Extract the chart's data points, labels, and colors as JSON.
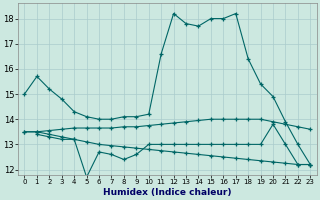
{
  "title": "",
  "xlabel": "Humidex (Indice chaleur)",
  "xlim": [
    -0.5,
    23.5
  ],
  "ylim": [
    11.8,
    18.6
  ],
  "yticks": [
    12,
    13,
    14,
    15,
    16,
    17,
    18
  ],
  "xticks": [
    0,
    1,
    2,
    3,
    4,
    5,
    6,
    7,
    8,
    9,
    10,
    11,
    12,
    13,
    14,
    15,
    16,
    17,
    18,
    19,
    20,
    21,
    22,
    23
  ],
  "background_color": "#cce8e0",
  "grid_color": "#aacccc",
  "line_color": "#006666",
  "lines": [
    {
      "x": [
        0,
        1,
        2,
        3,
        4,
        5,
        6,
        7,
        8,
        9,
        10,
        11,
        12,
        13,
        14,
        15,
        16,
        17,
        18,
        19,
        20,
        21,
        22,
        23
      ],
      "y": [
        15.0,
        15.7,
        15.2,
        14.8,
        14.3,
        14.1,
        14.0,
        14.0,
        14.1,
        14.1,
        14.2,
        16.6,
        18.2,
        17.8,
        17.7,
        18.0,
        18.0,
        18.2,
        16.4,
        15.4,
        14.9,
        13.9,
        13.0,
        12.2
      ]
    },
    {
      "x": [
        0,
        1,
        2,
        3,
        4,
        5,
        6,
        7,
        8,
        9,
        10,
        11,
        12,
        13,
        14,
        15,
        16,
        17,
        18,
        19,
        20,
        21,
        22,
        23
      ],
      "y": [
        13.5,
        13.5,
        13.55,
        13.6,
        13.65,
        13.65,
        13.65,
        13.65,
        13.7,
        13.7,
        13.75,
        13.8,
        13.85,
        13.9,
        13.95,
        14.0,
        14.0,
        14.0,
        14.0,
        14.0,
        13.9,
        13.8,
        13.7,
        13.6
      ]
    },
    {
      "x": [
        1,
        2,
        3,
        4,
        5,
        6,
        7,
        8,
        9,
        10,
        11,
        12,
        13,
        14,
        15,
        16,
        17,
        18,
        19,
        20,
        21,
        22,
        23
      ],
      "y": [
        13.4,
        13.3,
        13.2,
        13.2,
        11.7,
        12.7,
        12.6,
        12.4,
        12.6,
        13.0,
        13.0,
        13.0,
        13.0,
        13.0,
        13.0,
        13.0,
        13.0,
        13.0,
        13.0,
        13.8,
        13.0,
        12.2,
        12.2
      ]
    },
    {
      "x": [
        0,
        1,
        2,
        3,
        4,
        5,
        6,
        7,
        8,
        9,
        10,
        11,
        12,
        13,
        14,
        15,
        16,
        17,
        18,
        19,
        20,
        21,
        22,
        23
      ],
      "y": [
        13.5,
        13.5,
        13.4,
        13.3,
        13.2,
        13.1,
        13.0,
        12.95,
        12.9,
        12.85,
        12.8,
        12.75,
        12.7,
        12.65,
        12.6,
        12.55,
        12.5,
        12.45,
        12.4,
        12.35,
        12.3,
        12.25,
        12.2,
        12.2
      ]
    }
  ]
}
